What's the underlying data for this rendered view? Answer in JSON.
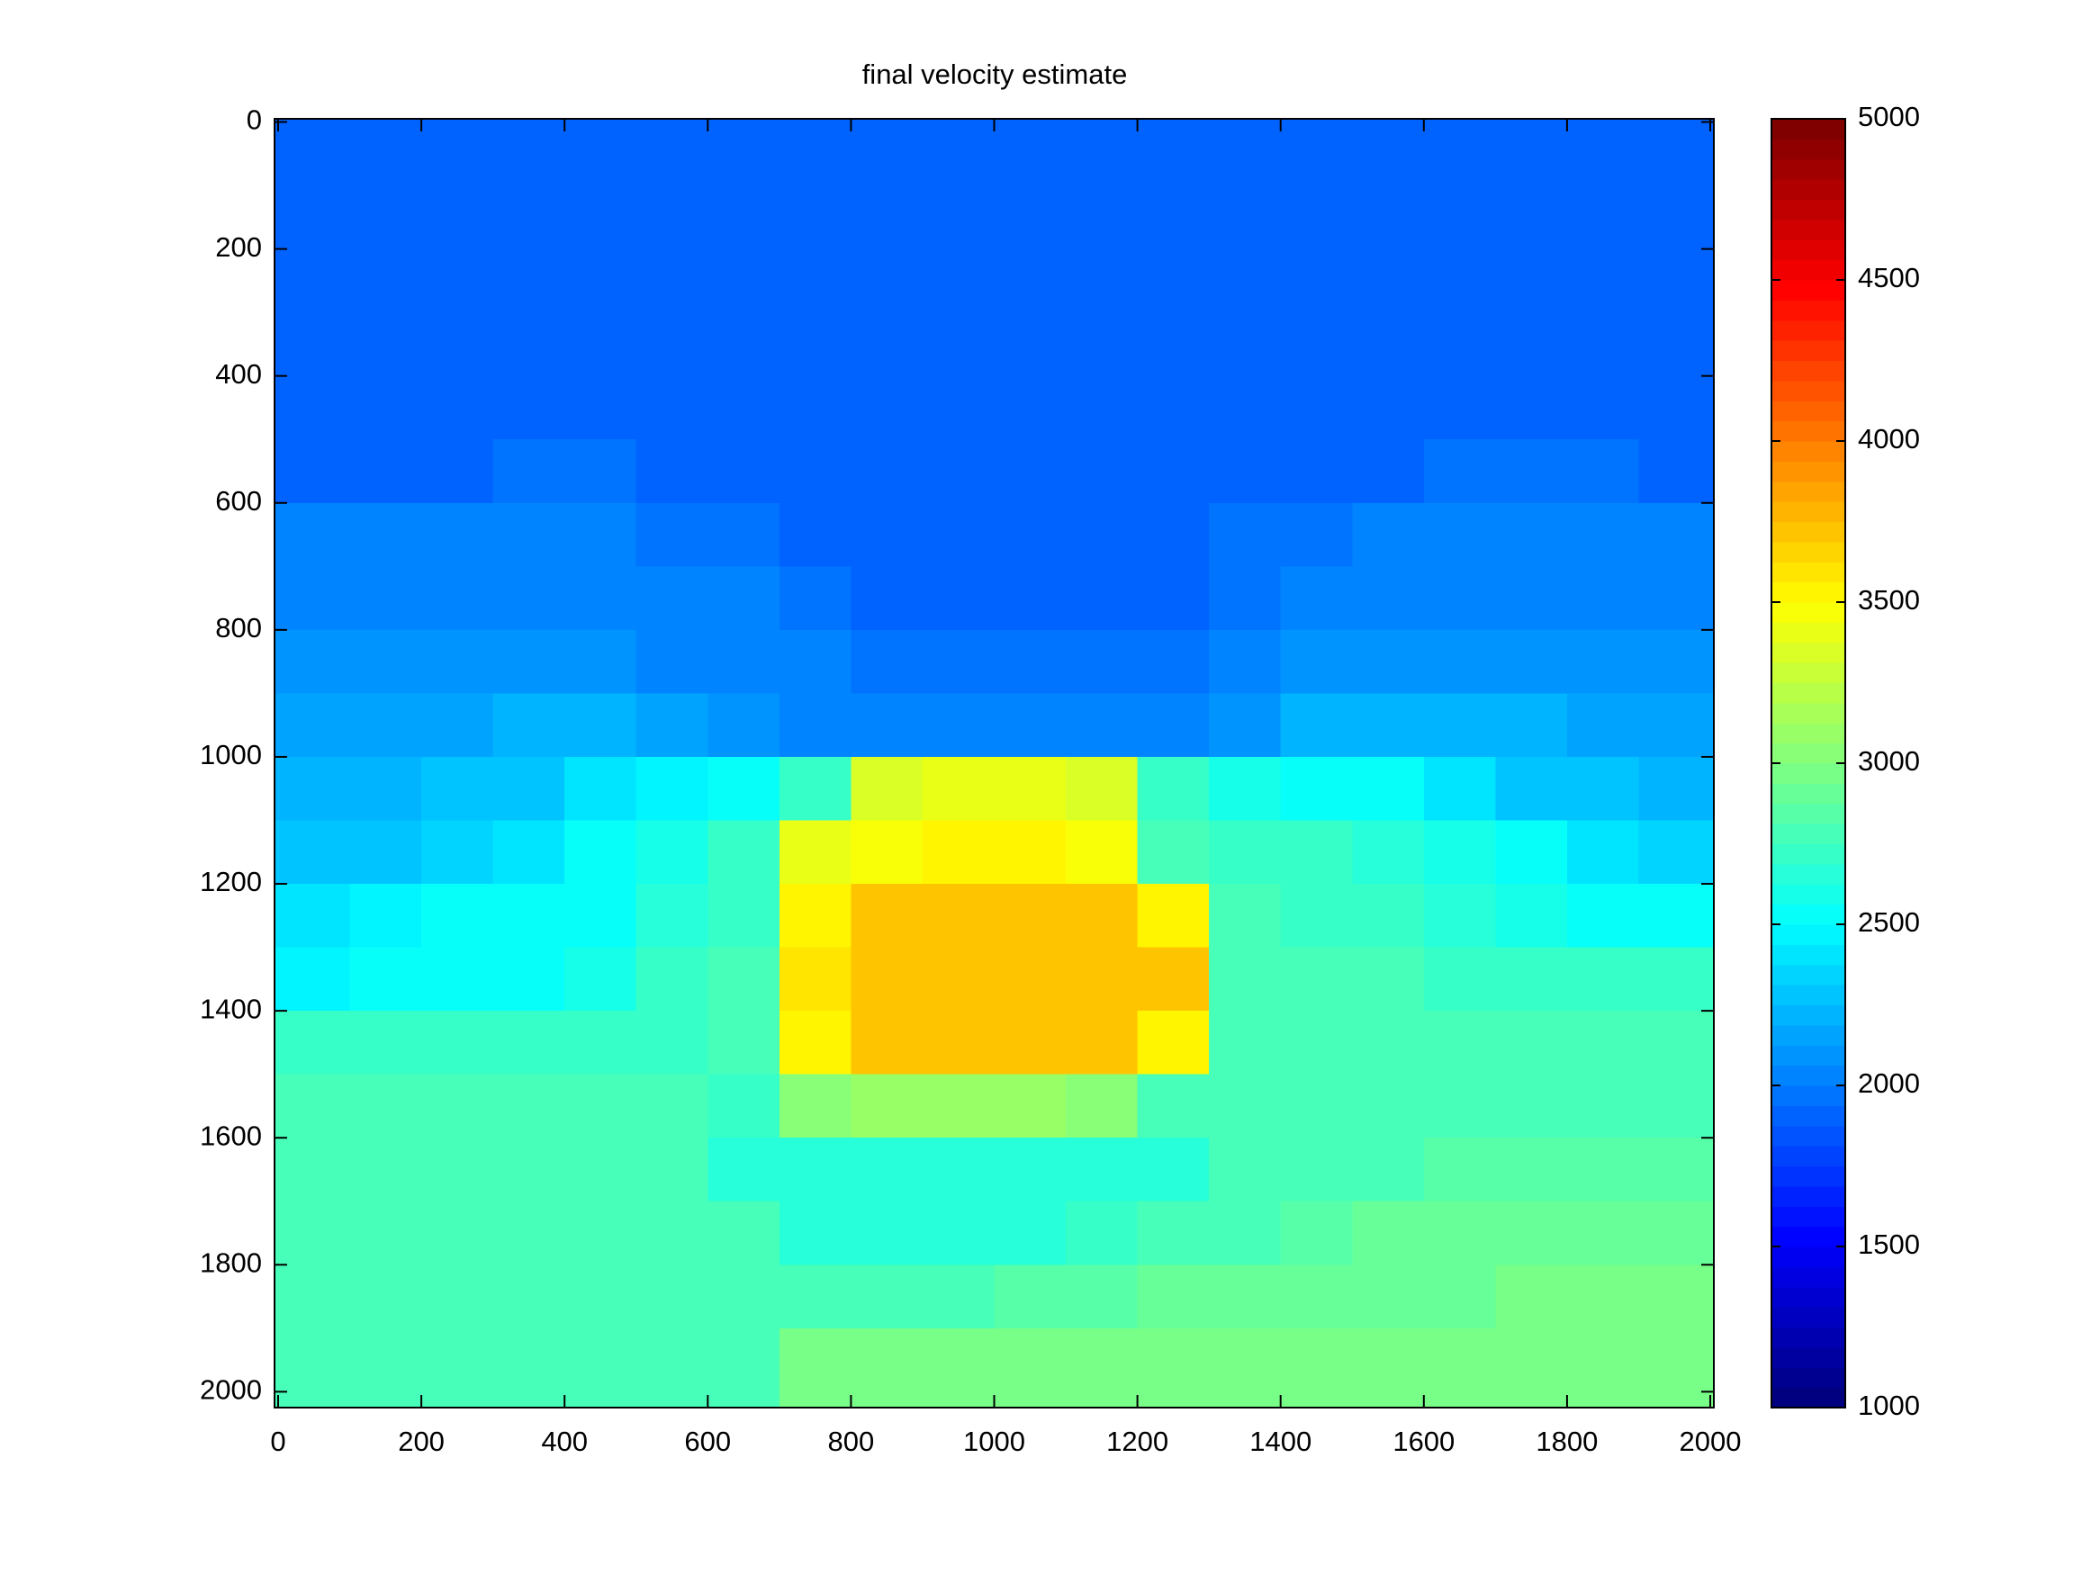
{
  "chart_data": {
    "type": "heatmap",
    "title": "final velocity estimate",
    "colormap": "jet",
    "x": [
      50,
      150,
      250,
      350,
      450,
      550,
      650,
      750,
      850,
      950,
      1050,
      1150,
      1250,
      1350,
      1450,
      1550,
      1650,
      1750,
      1850,
      1950
    ],
    "y": [
      50,
      150,
      250,
      350,
      450,
      550,
      650,
      750,
      850,
      950,
      1050,
      1150,
      1250,
      1350,
      1450,
      1550,
      1650,
      1750,
      1850,
      1950
    ],
    "z": [
      [
        1900,
        1900,
        1900,
        1900,
        1900,
        1900,
        1900,
        1900,
        1900,
        1900,
        1900,
        1900,
        1900,
        1900,
        1900,
        1900,
        1900,
        1900,
        1900,
        1900
      ],
      [
        1900,
        1900,
        1900,
        1900,
        1900,
        1900,
        1900,
        1900,
        1900,
        1900,
        1900,
        1900,
        1900,
        1900,
        1900,
        1900,
        1900,
        1900,
        1900,
        1900
      ],
      [
        1900,
        1900,
        1900,
        1900,
        1900,
        1900,
        1900,
        1900,
        1900,
        1900,
        1900,
        1900,
        1900,
        1900,
        1900,
        1900,
        1900,
        1900,
        1900,
        1900
      ],
      [
        1900,
        1900,
        1900,
        1900,
        1900,
        1900,
        1900,
        1900,
        1900,
        1900,
        1900,
        1900,
        1900,
        1900,
        1900,
        1900,
        1900,
        1900,
        1900,
        1900
      ],
      [
        1900,
        1900,
        1900,
        1900,
        1900,
        1900,
        1900,
        1900,
        1900,
        1900,
        1900,
        1900,
        1900,
        1900,
        1900,
        1900,
        1900,
        1900,
        1900,
        1900
      ],
      [
        1900,
        1900,
        1900,
        1950,
        1950,
        1900,
        1900,
        1900,
        1900,
        1900,
        1900,
        1900,
        1900,
        1900,
        1900,
        1900,
        1950,
        1950,
        1950,
        1900
      ],
      [
        2000,
        2000,
        2000,
        2000,
        2000,
        1950,
        1950,
        1900,
        1900,
        1900,
        1900,
        1900,
        1900,
        1950,
        1950,
        2000,
        2000,
        2000,
        2000,
        2000
      ],
      [
        2050,
        2050,
        2050,
        2050,
        2050,
        2000,
        2000,
        1950,
        1900,
        1900,
        1900,
        1900,
        1900,
        1950,
        2000,
        2050,
        2050,
        2050,
        2050,
        2050
      ],
      [
        2100,
        2100,
        2100,
        2100,
        2100,
        2050,
        2050,
        2000,
        1950,
        1950,
        1950,
        1950,
        1950,
        2000,
        2100,
        2100,
        2100,
        2100,
        2100,
        2100
      ],
      [
        2150,
        2150,
        2150,
        2200,
        2200,
        2150,
        2100,
        2050,
        2000,
        2000,
        2000,
        2000,
        2000,
        2100,
        2200,
        2200,
        2200,
        2200,
        2150,
        2150
      ],
      [
        2200,
        2200,
        2250,
        2300,
        2400,
        2450,
        2550,
        2700,
        3350,
        3400,
        3400,
        3350,
        2700,
        2600,
        2550,
        2500,
        2400,
        2300,
        2250,
        2200
      ],
      [
        2250,
        2300,
        2350,
        2400,
        2500,
        2600,
        2700,
        3400,
        3450,
        3500,
        3500,
        3450,
        2800,
        2700,
        2700,
        2650,
        2600,
        2500,
        2400,
        2350
      ],
      [
        2400,
        2450,
        2500,
        2500,
        2550,
        2650,
        2700,
        3500,
        3700,
        3700,
        3700,
        3700,
        3500,
        2750,
        2700,
        2700,
        2650,
        2600,
        2550,
        2500
      ],
      [
        2450,
        2500,
        2500,
        2550,
        2600,
        2700,
        2750,
        3600,
        3700,
        3700,
        3700,
        3700,
        3700,
        2800,
        2750,
        2750,
        2700,
        2700,
        2700,
        2700
      ],
      [
        2700,
        2700,
        2700,
        2700,
        2700,
        2700,
        2750,
        3500,
        3700,
        3700,
        3700,
        3700,
        3500,
        2750,
        2750,
        2750,
        2750,
        2750,
        2750,
        2750
      ],
      [
        2750,
        2750,
        2750,
        2750,
        2750,
        2750,
        2700,
        3000,
        3100,
        3100,
        3100,
        3000,
        2750,
        2750,
        2750,
        2750,
        2750,
        2800,
        2800,
        2800
      ],
      [
        2800,
        2800,
        2800,
        2800,
        2800,
        2750,
        2650,
        2650,
        2650,
        2650,
        2650,
        2650,
        2650,
        2750,
        2800,
        2800,
        2850,
        2850,
        2850,
        2850
      ],
      [
        2800,
        2800,
        2800,
        2800,
        2800,
        2800,
        2750,
        2650,
        2650,
        2650,
        2650,
        2700,
        2750,
        2800,
        2850,
        2900,
        2900,
        2900,
        2900,
        2900
      ],
      [
        2800,
        2800,
        2800,
        2800,
        2800,
        2800,
        2800,
        2800,
        2800,
        2800,
        2850,
        2850,
        2900,
        2900,
        2900,
        2900,
        2900,
        2950,
        2950,
        2950
      ],
      [
        2800,
        2800,
        2800,
        2800,
        2800,
        2800,
        2800,
        2950,
        2950,
        2950,
        2950,
        2950,
        2950,
        2950,
        2950,
        2950,
        2950,
        2950,
        2950,
        2950
      ]
    ],
    "xlim": [
      -5,
      2005
    ],
    "ylim": [
      -5,
      2025
    ],
    "y_reversed": true,
    "xticks": [
      0,
      200,
      400,
      600,
      800,
      1000,
      1200,
      1400,
      1600,
      1800,
      2000
    ],
    "yticks": [
      0,
      200,
      400,
      600,
      800,
      1000,
      1200,
      1400,
      1600,
      1800,
      2000
    ],
    "clim": [
      1000,
      5000
    ],
    "cticks": [
      1000,
      1500,
      2000,
      2500,
      3000,
      3500,
      4000,
      4500,
      5000
    ]
  }
}
